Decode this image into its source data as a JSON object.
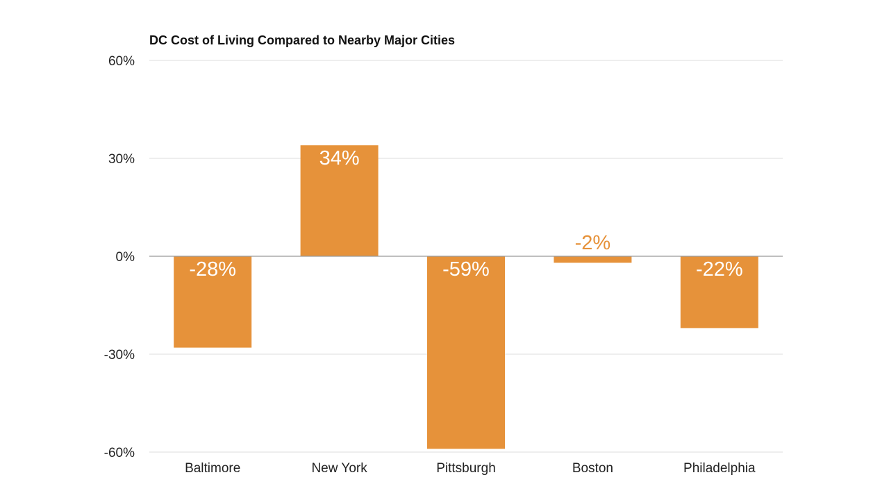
{
  "chart_data": {
    "type": "bar",
    "title": "DC Cost of Living Compared to Nearby Major Cities",
    "xlabel": "",
    "ylabel": "",
    "categories": [
      "Baltimore",
      "New York",
      "Pittsburgh",
      "Boston",
      "Philadelphia"
    ],
    "values": [
      -28,
      34,
      -59,
      -2,
      -22
    ],
    "data_labels": [
      "-28%",
      "34%",
      "-59%",
      "-2%",
      "-22%"
    ],
    "ylim": [
      -60,
      60
    ],
    "yticks": [
      60,
      30,
      0,
      -30,
      -60
    ],
    "ytick_labels": [
      "60%",
      "30%",
      "0%",
      "-30%",
      "-60%"
    ],
    "grid": true,
    "legend": "none",
    "colors": {
      "bar": "#E6923A",
      "grid": "#DDDDDD",
      "zero_line": "#999999",
      "label_inside": "#FFFFFF",
      "label_outside": "#E6923A"
    }
  }
}
